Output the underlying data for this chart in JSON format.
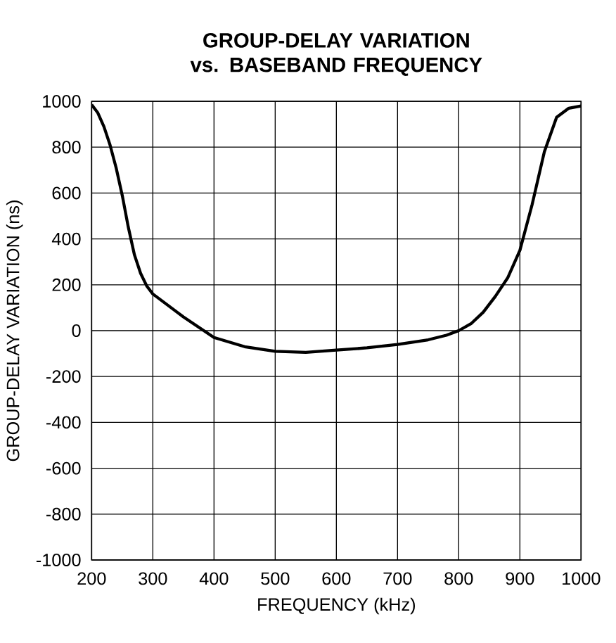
{
  "chart_data": {
    "type": "line",
    "title": "GROUP-DELAY VARIATION vs. BASEBAND FREQUENCY",
    "xlabel": "FREQUENCY (kHz)",
    "ylabel": "GROUP-DELAY VARIATION (ns)",
    "x": [
      200,
      210,
      220,
      230,
      240,
      250,
      260,
      270,
      280,
      290,
      300,
      325,
      350,
      375,
      400,
      450,
      500,
      550,
      600,
      650,
      700,
      750,
      780,
      800,
      820,
      840,
      860,
      880,
      900,
      920,
      940,
      960,
      980,
      1000
    ],
    "series": [
      {
        "color": "#000000",
        "values": [
          985,
          950,
          890,
          810,
          710,
          590,
          450,
          330,
          250,
          195,
          160,
          110,
          60,
          15,
          -30,
          -70,
          -90,
          -95,
          -85,
          -75,
          -60,
          -40,
          -20,
          0,
          30,
          80,
          150,
          230,
          350,
          550,
          780,
          930,
          970,
          980
        ]
      }
    ],
    "xlim": [
      200,
      1000
    ],
    "ylim": [
      -1000,
      1000
    ],
    "xticks": [
      200,
      300,
      400,
      500,
      600,
      700,
      800,
      900,
      1000
    ],
    "yticks": [
      -1000,
      -800,
      -600,
      -400,
      -200,
      0,
      200,
      400,
      600,
      800,
      1000
    ],
    "grid": true,
    "marker": "none",
    "line_style": "solid"
  }
}
